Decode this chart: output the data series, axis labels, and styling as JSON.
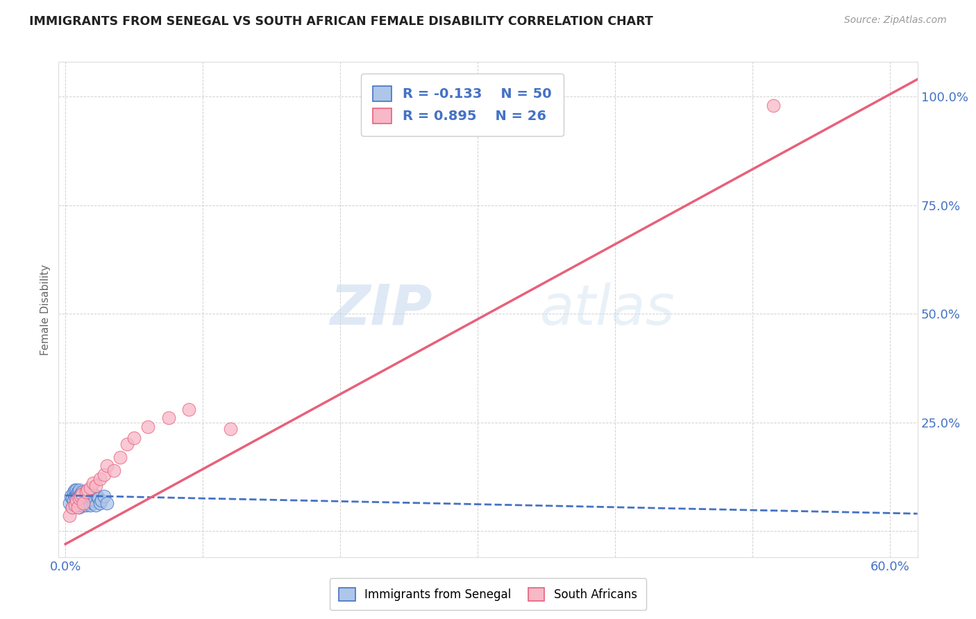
{
  "title": "IMMIGRANTS FROM SENEGAL VS SOUTH AFRICAN FEMALE DISABILITY CORRELATION CHART",
  "source": "Source: ZipAtlas.com",
  "ylabel": "Female Disability",
  "legend_labels": [
    "Immigrants from Senegal",
    "South Africans"
  ],
  "R_blue": -0.133,
  "N_blue": 50,
  "R_pink": 0.895,
  "N_pink": 26,
  "blue_color": "#aec6e8",
  "pink_color": "#f7b8c8",
  "blue_line_color": "#4472c4",
  "pink_line_color": "#e8607a",
  "xlim": [
    -0.005,
    0.62
  ],
  "ylim": [
    -0.06,
    1.08
  ],
  "xticks": [
    0.0,
    0.1,
    0.2,
    0.3,
    0.4,
    0.5,
    0.6
  ],
  "xtick_labels": [
    "0.0%",
    "",
    "",
    "",
    "",
    "",
    "60.0%"
  ],
  "ytick_positions": [
    0.0,
    0.25,
    0.5,
    0.75,
    1.0
  ],
  "ytick_labels": [
    "",
    "25.0%",
    "50.0%",
    "75.0%",
    "100.0%"
  ],
  "watermark_zip": "ZIP",
  "watermark_atlas": "atlas",
  "background_color": "#ffffff",
  "blue_scatter_x": [
    0.003,
    0.004,
    0.005,
    0.005,
    0.006,
    0.006,
    0.007,
    0.007,
    0.007,
    0.008,
    0.008,
    0.008,
    0.009,
    0.009,
    0.009,
    0.01,
    0.01,
    0.01,
    0.01,
    0.01,
    0.01,
    0.011,
    0.011,
    0.011,
    0.012,
    0.012,
    0.012,
    0.013,
    0.013,
    0.014,
    0.014,
    0.015,
    0.015,
    0.015,
    0.016,
    0.016,
    0.017,
    0.018,
    0.018,
    0.019,
    0.02,
    0.02,
    0.021,
    0.022,
    0.023,
    0.024,
    0.025,
    0.026,
    0.028,
    0.03
  ],
  "blue_scatter_y": [
    0.065,
    0.08,
    0.055,
    0.075,
    0.07,
    0.09,
    0.06,
    0.08,
    0.095,
    0.065,
    0.085,
    0.095,
    0.06,
    0.075,
    0.09,
    0.055,
    0.065,
    0.075,
    0.085,
    0.09,
    0.095,
    0.06,
    0.07,
    0.085,
    0.065,
    0.075,
    0.09,
    0.06,
    0.085,
    0.07,
    0.08,
    0.06,
    0.075,
    0.09,
    0.065,
    0.085,
    0.07,
    0.06,
    0.08,
    0.075,
    0.065,
    0.085,
    0.07,
    0.06,
    0.08,
    0.075,
    0.065,
    0.07,
    0.08,
    0.065
  ],
  "pink_scatter_x": [
    0.003,
    0.005,
    0.007,
    0.008,
    0.009,
    0.01,
    0.011,
    0.012,
    0.013,
    0.015,
    0.016,
    0.018,
    0.02,
    0.022,
    0.025,
    0.028,
    0.03,
    0.035,
    0.04,
    0.045,
    0.05,
    0.06,
    0.075,
    0.09,
    0.12,
    0.515
  ],
  "pink_scatter_y": [
    0.035,
    0.055,
    0.06,
    0.07,
    0.055,
    0.075,
    0.08,
    0.085,
    0.065,
    0.09,
    0.095,
    0.1,
    0.11,
    0.105,
    0.12,
    0.13,
    0.15,
    0.14,
    0.17,
    0.2,
    0.215,
    0.24,
    0.26,
    0.28,
    0.235,
    0.98
  ],
  "blue_trend_x": [
    0.0,
    0.62
  ],
  "blue_trend_y": [
    0.082,
    0.04
  ],
  "pink_trend_x": [
    0.0,
    0.62
  ],
  "pink_trend_y": [
    -0.03,
    1.04
  ]
}
